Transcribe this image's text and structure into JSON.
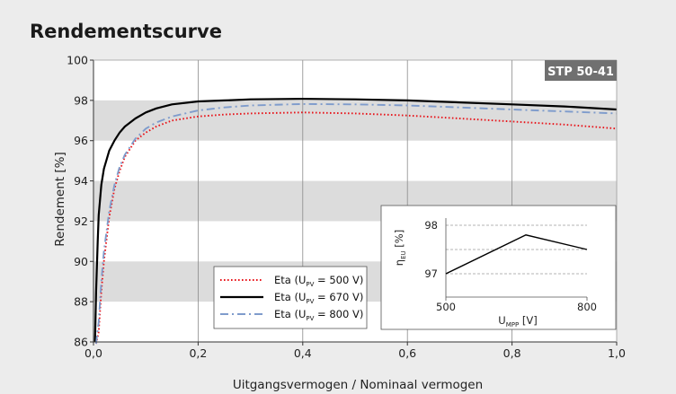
{
  "chart_data": {
    "type": "line",
    "title": "Rendementscurve",
    "badge": "STP 50-41",
    "xlabel": "Uitgangsvermogen / Nominaal vermogen",
    "ylabel": "Rendement [%]",
    "xlim": [
      0,
      1
    ],
    "ylim": [
      86,
      100
    ],
    "xticks": [
      "0,0",
      "0,2",
      "0,4",
      "0,6",
      "0,8",
      "1,0"
    ],
    "yticks": [
      "86",
      "88",
      "90",
      "92",
      "94",
      "96",
      "98",
      "100"
    ],
    "grid": "vertical lines, alternating horizontal grey bands",
    "legend_placement": "lower center",
    "series": [
      {
        "name": "Eta (U_PV = 500 V)",
        "label_main": "Eta (U",
        "label_sub": "PV",
        "label_end": " = 500 V)",
        "color": "#e8141a",
        "style": "dotted",
        "x": [
          0.005,
          0.01,
          0.015,
          0.02,
          0.03,
          0.04,
          0.05,
          0.06,
          0.08,
          0.1,
          0.12,
          0.15,
          0.2,
          0.25,
          0.3,
          0.4,
          0.5,
          0.6,
          0.7,
          0.8,
          0.9,
          1.0
        ],
        "y": [
          85.5,
          86.5,
          88.5,
          90.0,
          92.2,
          93.6,
          94.5,
          95.2,
          96.0,
          96.4,
          96.7,
          97.0,
          97.2,
          97.3,
          97.35,
          97.4,
          97.35,
          97.25,
          97.1,
          96.95,
          96.8,
          96.6
        ]
      },
      {
        "name": "Eta (U_PV = 670 V)",
        "label_main": "Eta (U",
        "label_sub": "PV",
        "label_end": " = 670 V)",
        "color": "#000000",
        "style": "solid",
        "x": [
          0.003,
          0.005,
          0.008,
          0.01,
          0.015,
          0.02,
          0.03,
          0.04,
          0.05,
          0.06,
          0.08,
          0.1,
          0.12,
          0.15,
          0.2,
          0.25,
          0.3,
          0.4,
          0.5,
          0.6,
          0.7,
          0.8,
          0.9,
          1.0
        ],
        "y": [
          86.0,
          88.5,
          91.0,
          92.3,
          93.8,
          94.6,
          95.5,
          96.0,
          96.4,
          96.7,
          97.1,
          97.4,
          97.6,
          97.8,
          97.95,
          98.0,
          98.05,
          98.08,
          98.05,
          98.0,
          97.9,
          97.8,
          97.7,
          97.55
        ]
      },
      {
        "name": "Eta (U_PV = 800 V)",
        "label_main": "Eta (U",
        "label_sub": "PV",
        "label_end": " = 800 V)",
        "color": "#7f9ccc",
        "style": "dashdot",
        "x": [
          0.005,
          0.01,
          0.015,
          0.02,
          0.03,
          0.04,
          0.05,
          0.06,
          0.08,
          0.1,
          0.12,
          0.15,
          0.2,
          0.25,
          0.3,
          0.4,
          0.5,
          0.6,
          0.7,
          0.8,
          0.9,
          1.0
        ],
        "y": [
          85.5,
          87.0,
          89.0,
          90.5,
          92.5,
          93.8,
          94.7,
          95.3,
          96.1,
          96.6,
          96.9,
          97.2,
          97.5,
          97.65,
          97.75,
          97.82,
          97.8,
          97.75,
          97.65,
          97.55,
          97.45,
          97.35
        ]
      }
    ],
    "inset": {
      "type": "line",
      "ylabel_main": "η",
      "ylabel_sub": "EU",
      "ylabel_end": " [%]",
      "xlabel_main": "U",
      "xlabel_sub": "MPP",
      "xlabel_end": " [V]",
      "xlim": [
        500,
        800
      ],
      "ylim": [
        97,
        98
      ],
      "xticks": [
        "500",
        "800"
      ],
      "yticks": [
        "97",
        "98"
      ],
      "x": [
        500,
        670,
        800
      ],
      "y": [
        97.0,
        97.8,
        97.5
      ],
      "color": "#000000"
    }
  }
}
